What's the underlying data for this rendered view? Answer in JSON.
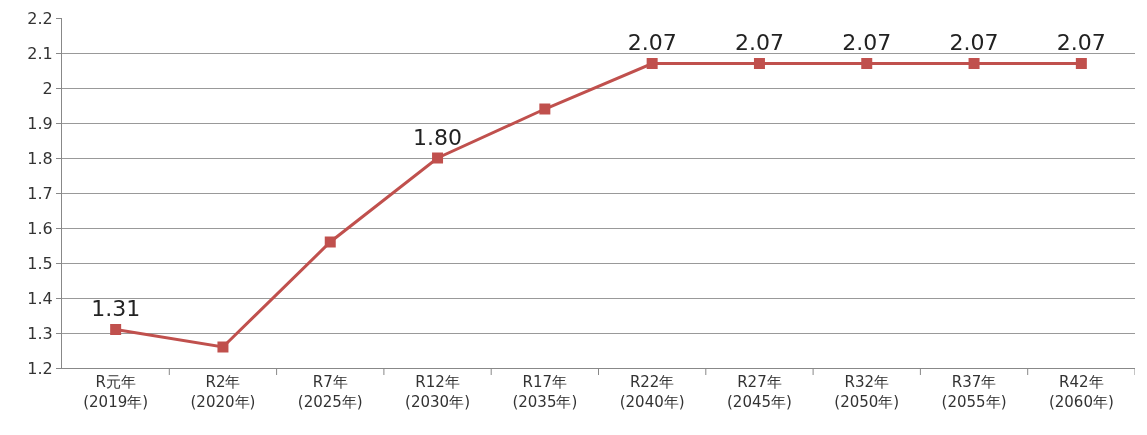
{
  "chart_data": {
    "type": "line",
    "categories": [
      "R元年\n(2019年)",
      "R2年\n(2020年)",
      "R7年\n(2025年)",
      "R12年\n(2030年)",
      "R17年\n(2035年)",
      "R22年\n(2040年)",
      "R27年\n(2045年)",
      "R32年\n(2050年)",
      "R37年\n(2055年)",
      "R42年\n(2060年)"
    ],
    "series": [
      {
        "color": "#c0504d",
        "values": [
          1.31,
          1.26,
          1.56,
          1.8,
          1.94,
          2.07,
          2.07,
          2.07,
          2.07,
          2.07
        ],
        "value_labels": [
          "1.31",
          null,
          null,
          "1.80",
          null,
          "2.07",
          "2.07",
          "2.07",
          "2.07",
          "2.07"
        ]
      }
    ],
    "ylim": [
      1.2,
      2.2
    ],
    "yticks": [
      1.2,
      1.3,
      1.4,
      1.5,
      1.6,
      1.7,
      1.8,
      1.9,
      2,
      2.1,
      2.2
    ],
    "grid": "y",
    "marker": "square",
    "line_style": "solid"
  }
}
